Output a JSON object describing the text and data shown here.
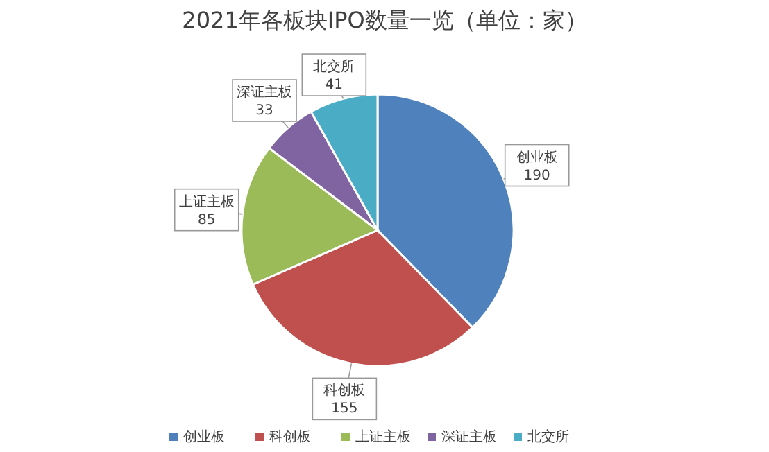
{
  "chart_data": {
    "type": "pie",
    "title": "2021年各板块IPO数量一览（单位：家）",
    "categories": [
      "创业板",
      "科创板",
      "上证主板",
      "深证主板",
      "北交所"
    ],
    "values": [
      190,
      155,
      85,
      33,
      41
    ],
    "colors": [
      "#4f81bd",
      "#c0504d",
      "#9bbb59",
      "#8064a2",
      "#4bacc6"
    ],
    "data_labels": true,
    "legend": "bottom"
  }
}
